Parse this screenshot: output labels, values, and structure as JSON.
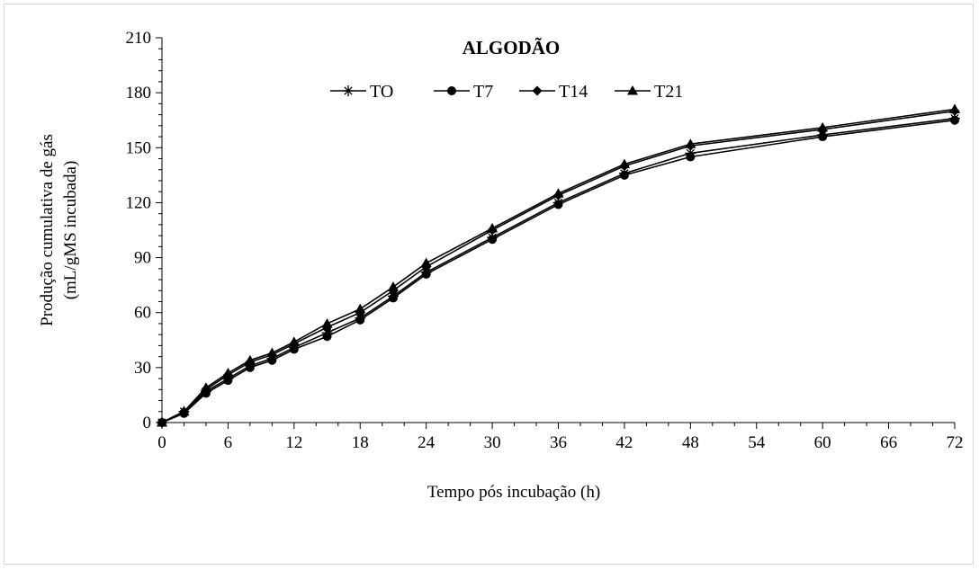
{
  "chart_data": {
    "type": "line",
    "title": "ALGODÃO",
    "xlabel": "Tempo pós incubação  (h)",
    "ylabel_line1": "Produção cumulativa  de gás",
    "ylabel_line2": "(mL/gMS  incubada)",
    "xlim": [
      0,
      72
    ],
    "ylim": [
      0,
      210
    ],
    "xticks": [
      0,
      6,
      12,
      18,
      24,
      30,
      36,
      42,
      48,
      54,
      60,
      66,
      72
    ],
    "yticks": [
      0,
      30,
      60,
      90,
      120,
      150,
      180,
      210
    ],
    "grid": false,
    "legend_position": "top-center",
    "x": [
      0,
      2,
      4,
      6,
      8,
      10,
      12,
      15,
      18,
      21,
      24,
      30,
      36,
      42,
      48,
      60,
      72
    ],
    "series": [
      {
        "name": "TO",
        "marker": "asterisk",
        "values": [
          0,
          6,
          17,
          24,
          31,
          35,
          41,
          49,
          57,
          69,
          82,
          101,
          120,
          136,
          147,
          157,
          166
        ]
      },
      {
        "name": "T7",
        "marker": "circle",
        "values": [
          0,
          5,
          16,
          23,
          30,
          34,
          40,
          47,
          56,
          68,
          81,
          100,
          119,
          135,
          145,
          156,
          165
        ]
      },
      {
        "name": "T14",
        "marker": "diamond",
        "values": [
          0,
          6,
          18,
          26,
          33,
          37,
          43,
          52,
          60,
          72,
          85,
          105,
          124,
          140,
          151,
          160,
          170
        ]
      },
      {
        "name": "T21",
        "marker": "triangle",
        "values": [
          0,
          6,
          19,
          27,
          34,
          38,
          44,
          54,
          62,
          74,
          87,
          106,
          125,
          141,
          152,
          161,
          171
        ]
      }
    ]
  }
}
